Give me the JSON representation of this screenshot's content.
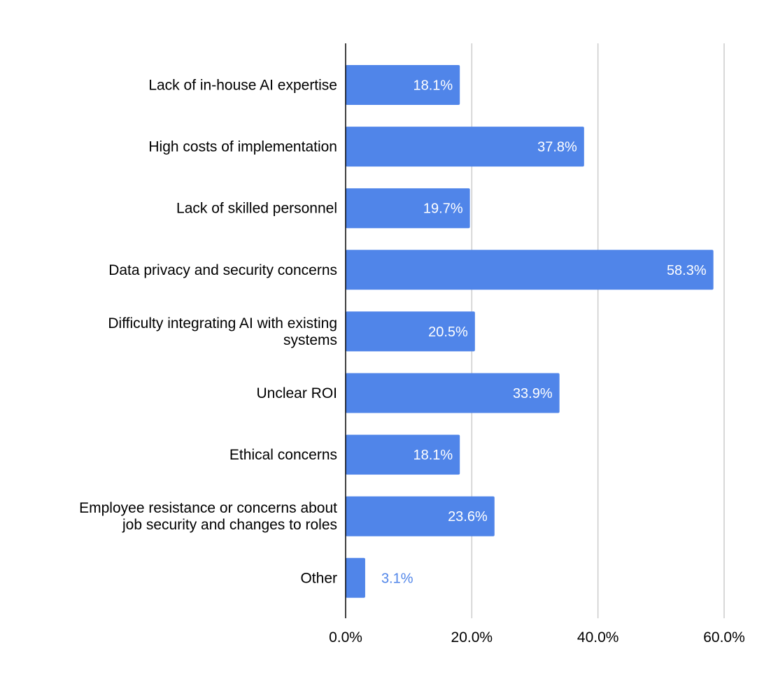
{
  "chart_data": {
    "type": "bar",
    "orientation": "horizontal",
    "categories": [
      "Lack of in-house AI expertise",
      "High costs of implementation",
      "Lack of skilled personnel",
      "Data privacy and security concerns",
      "Difficulty integrating AI with existing systems",
      "Unclear ROI",
      "Ethical concerns",
      "Employee resistance or concerns about job security and changes to roles",
      "Other"
    ],
    "category_lines": [
      [
        "Lack of in-house AI expertise"
      ],
      [
        "High costs of implementation"
      ],
      [
        "Lack of skilled personnel"
      ],
      [
        "Data privacy and security concerns"
      ],
      [
        "Difficulty integrating AI with existing",
        "systems"
      ],
      [
        "Unclear ROI"
      ],
      [
        "Ethical concerns"
      ],
      [
        "Employee resistance or concerns about",
        "job security and changes to roles"
      ],
      [
        "Other"
      ]
    ],
    "values": [
      18.1,
      37.8,
      19.7,
      58.3,
      20.5,
      33.9,
      18.1,
      23.6,
      3.1
    ],
    "data_labels": [
      "18.1%",
      "37.8%",
      "19.7%",
      "58.3%",
      "20.5%",
      "33.9%",
      "18.1%",
      "23.6%",
      "3.1%"
    ],
    "xlim": [
      0,
      60
    ],
    "x_ticks": [
      0,
      20,
      40,
      60
    ],
    "x_tick_labels": [
      "0.0%",
      "20.0%",
      "40.0%",
      "60.0%"
    ],
    "grid": true,
    "legend": "none",
    "colors": {
      "bar": "#5085e9",
      "grid": "#cccccc",
      "axis": "#000000",
      "label_inside": "#ffffff",
      "label_outside": "#5085e9"
    }
  }
}
